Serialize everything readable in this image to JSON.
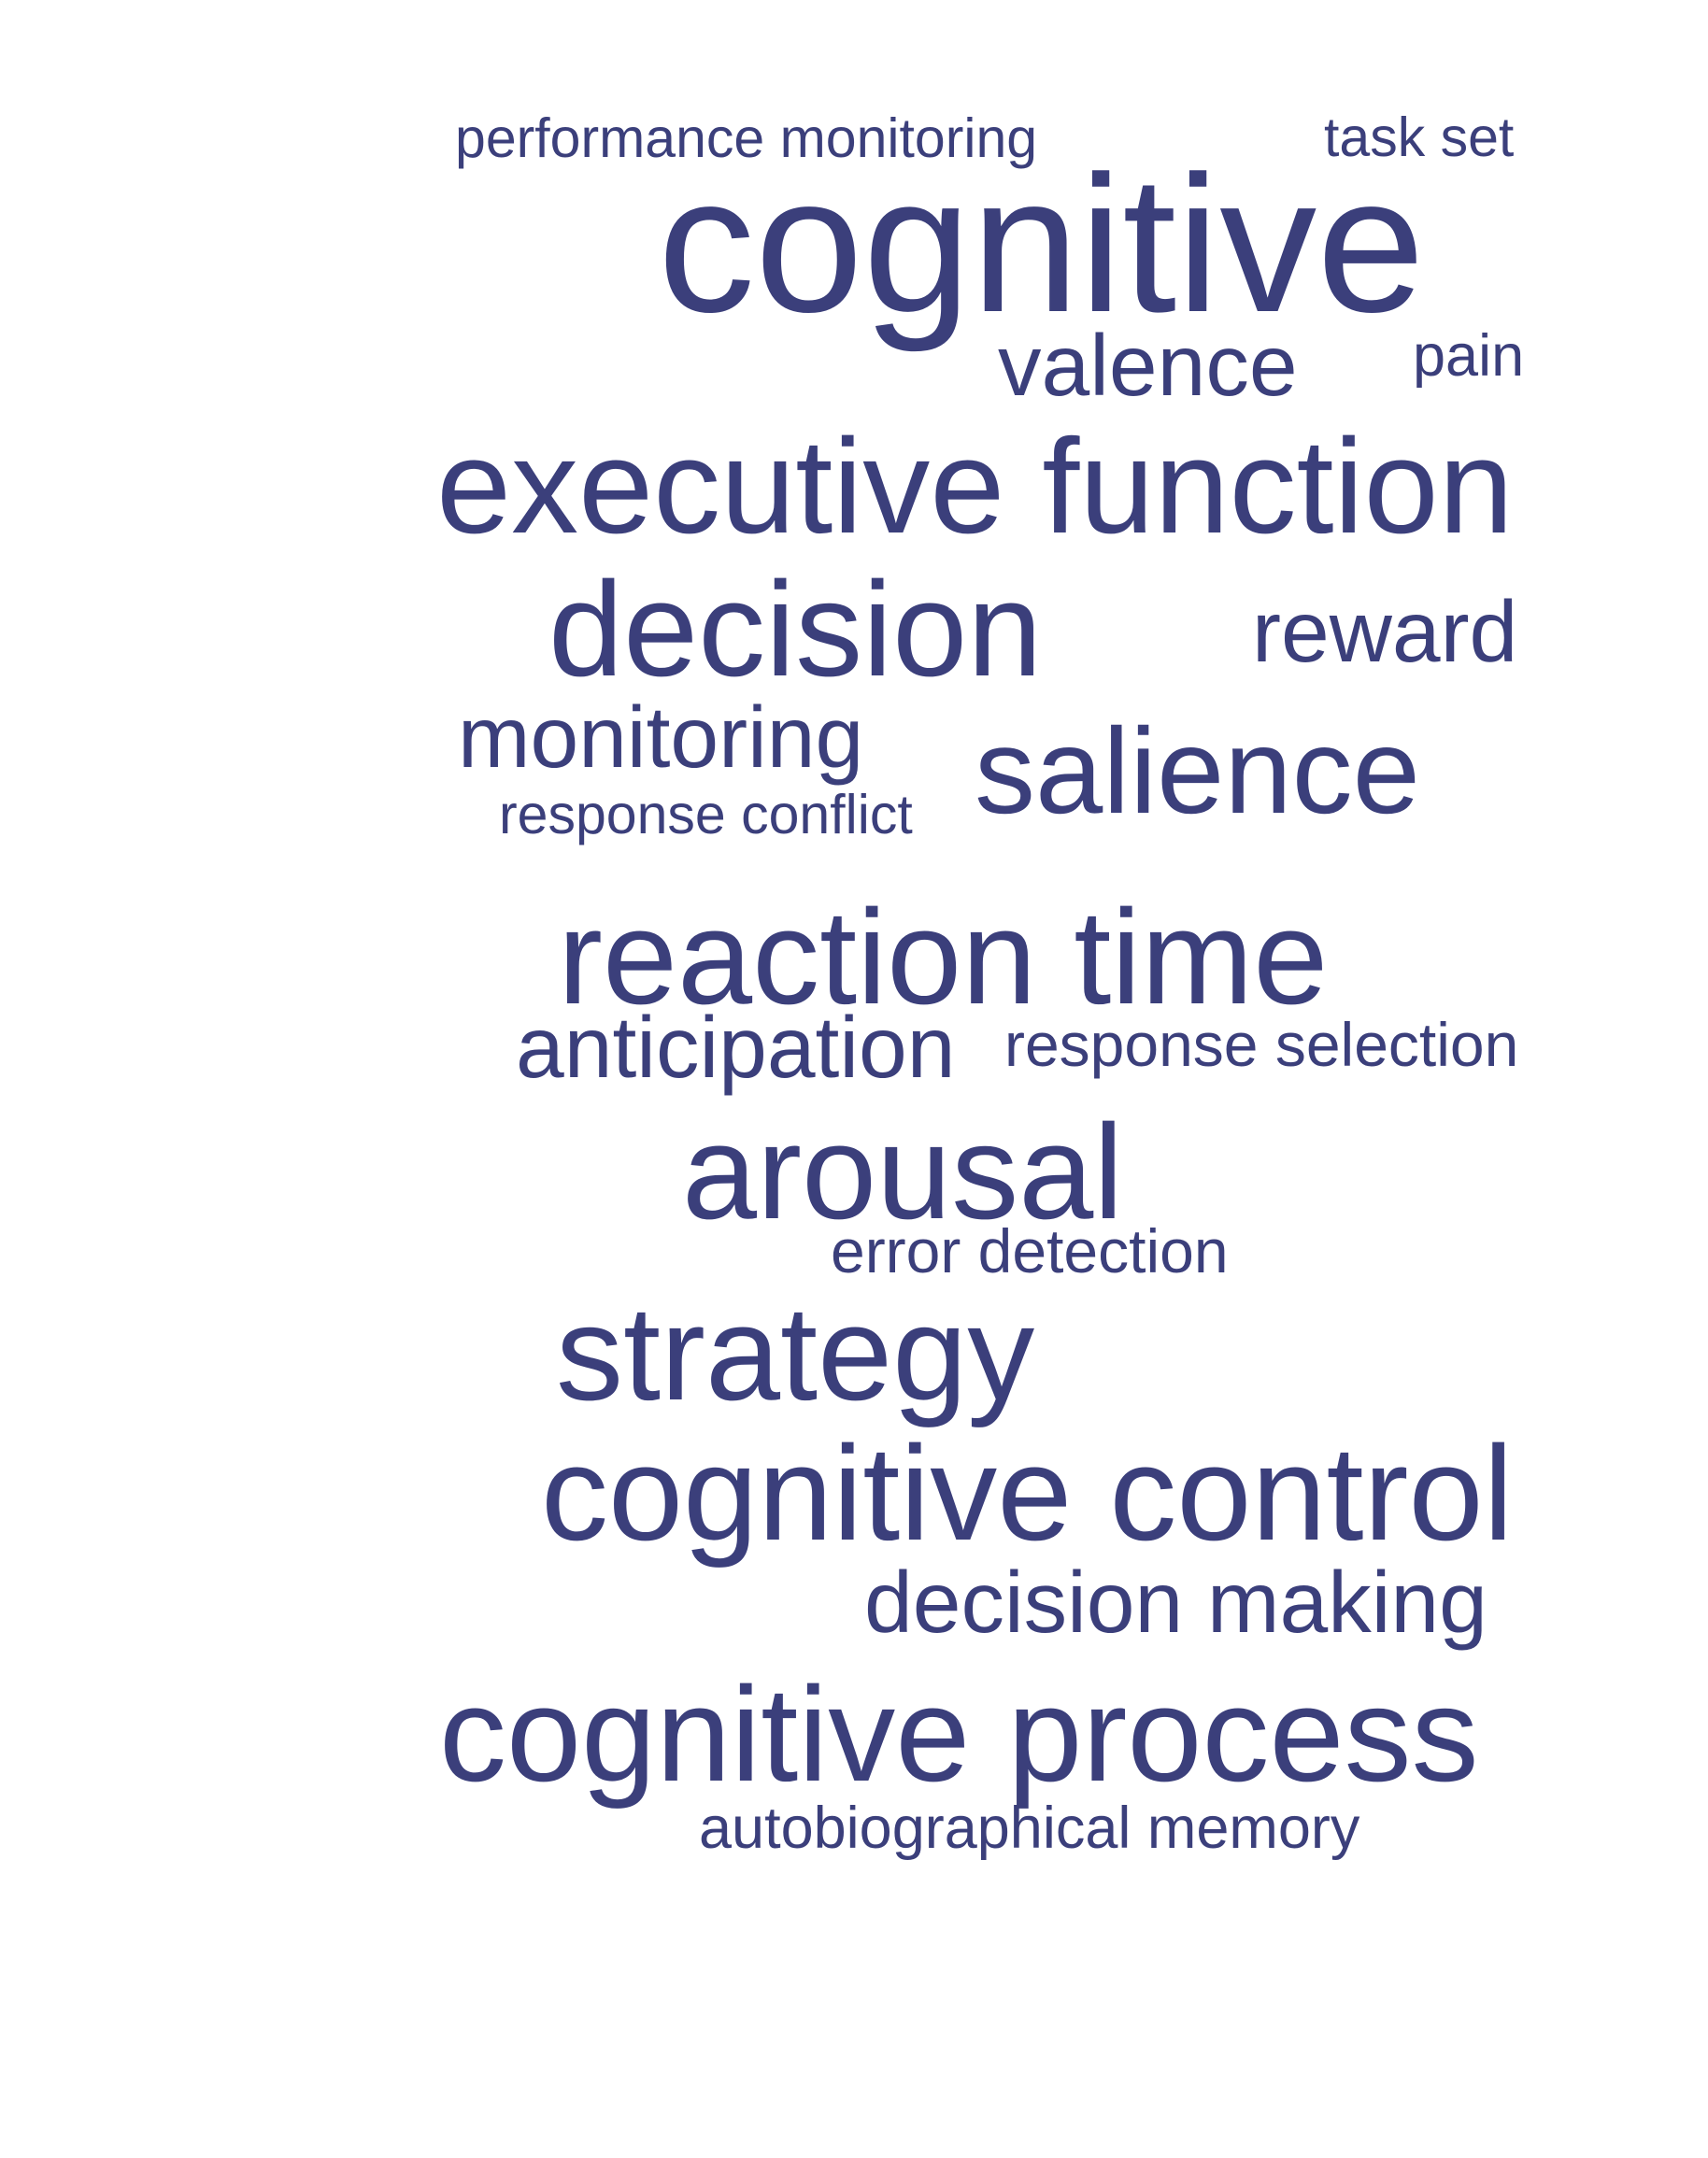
{
  "style": {
    "word_color": "#3b3f7b",
    "background": "#ffffff"
  },
  "words": {
    "performance_monitoring": "performance monitoring",
    "task_set": "task set",
    "cognitive": "cognitive",
    "valence": "valence",
    "pain": "pain",
    "executive_function": "executive function",
    "decision": "decision",
    "reward": "reward",
    "monitoring": "monitoring",
    "salience": "salience",
    "response_conflict": "response conflict",
    "reaction_time": "reaction time",
    "anticipation": "anticipation",
    "response_selection": "response selection",
    "arousal": "arousal",
    "error_detection": "error detection",
    "strategy": "strategy",
    "cognitive_control": "cognitive control",
    "decision_making": "decision making",
    "cognitive_process": "cognitive process",
    "autobiographical_memory": "autobiographical memory"
  }
}
